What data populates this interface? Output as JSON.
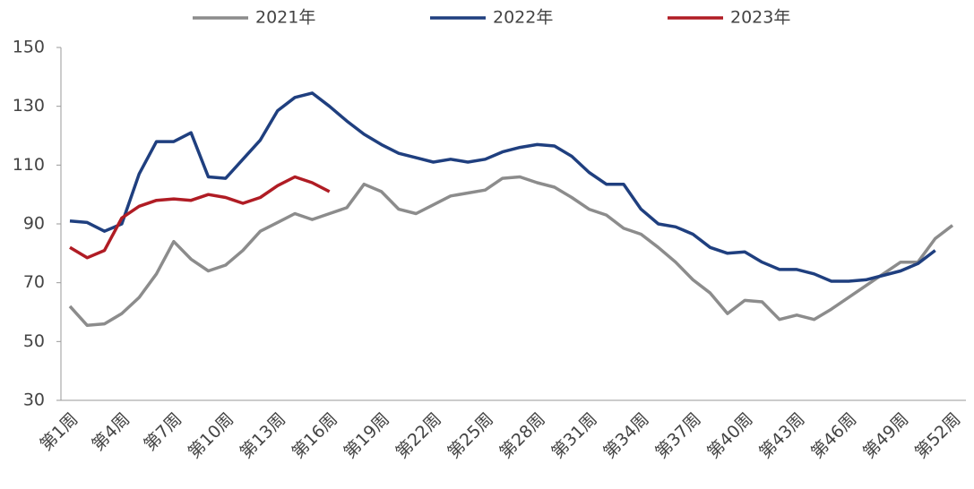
{
  "chart_data": {
    "type": "line",
    "categories": [
      "第1周",
      null,
      null,
      "第4周",
      null,
      null,
      "第7周",
      null,
      null,
      "第10周",
      null,
      null,
      "第13周",
      null,
      null,
      "第16周",
      null,
      null,
      "第19周",
      null,
      null,
      "第22周",
      null,
      null,
      "第25周",
      null,
      null,
      "第28周",
      null,
      null,
      "第31周",
      null,
      null,
      "第34周",
      null,
      null,
      "第37周",
      null,
      null,
      "第40周",
      null,
      null,
      "第43周",
      null,
      null,
      "第46周",
      null,
      null,
      "第49周",
      null,
      null,
      "第52周"
    ],
    "series": [
      {
        "name": "2021年",
        "color": "#8c8c8c",
        "values": [
          62,
          55.5,
          56,
          59.5,
          65,
          73,
          84,
          78,
          74,
          76,
          81,
          87.5,
          90.5,
          93.5,
          91.5,
          93.5,
          95.5,
          103.5,
          101,
          95,
          93.5,
          96.5,
          99.5,
          100.5,
          101.5,
          105.5,
          106,
          104,
          102.5,
          99,
          95,
          93,
          88.5,
          86.5,
          82,
          77,
          71,
          66.5,
          59.5,
          64,
          63.5,
          57.5,
          59,
          57.5,
          61,
          65,
          69,
          73,
          77,
          77,
          85,
          89.5
        ]
      },
      {
        "name": "2022年",
        "color": "#1f3f7f",
        "values": [
          91,
          90.5,
          87.5,
          90,
          107,
          118,
          118,
          121,
          106,
          105.5,
          112,
          118.5,
          128.5,
          133,
          134.5,
          130,
          125,
          120.5,
          117,
          114,
          112.5,
          111,
          112,
          111,
          112,
          114.5,
          116,
          117,
          116.5,
          113,
          107.5,
          103.5,
          103.5,
          95,
          90,
          89,
          86.5,
          82,
          80,
          80.5,
          77,
          74.5,
          74.5,
          73,
          70.5,
          70.5,
          71,
          72.5,
          74,
          76.5,
          81,
          null
        ]
      },
      {
        "name": "2023年",
        "color": "#b01c24",
        "values": [
          82,
          78.5,
          81,
          92,
          96,
          98,
          98.5,
          98,
          100,
          99,
          97,
          99,
          103,
          106,
          104,
          101,
          null,
          null,
          null,
          null,
          null,
          null,
          null,
          null,
          null,
          null,
          null,
          null,
          null,
          null,
          null,
          null,
          null,
          null,
          null,
          null,
          null,
          null,
          null,
          null,
          null,
          null,
          null,
          null,
          null,
          null,
          null,
          null,
          null,
          null,
          null,
          null
        ]
      }
    ],
    "ylim": [
      30,
      150
    ],
    "yticks": [
      30,
      50,
      70,
      90,
      110,
      130,
      150
    ],
    "legend": "top"
  }
}
